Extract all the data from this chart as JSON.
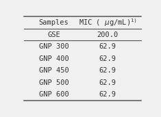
{
  "col_headers": [
    "Samples",
    "MIC ( μg/mL)$^{1)}$"
  ],
  "rows": [
    [
      "GSE",
      "200.0"
    ],
    [
      "GNP 300",
      "62.9"
    ],
    [
      "GNP 400",
      "62.9"
    ],
    [
      "GNP 450",
      "62.9"
    ],
    [
      "GNP 500",
      "62.9"
    ],
    [
      "GNP 600",
      "62.9"
    ]
  ],
  "bg_color": "#f0f0f0",
  "line_color": "#555555",
  "font_color": "#333333",
  "font_size": 7.5
}
